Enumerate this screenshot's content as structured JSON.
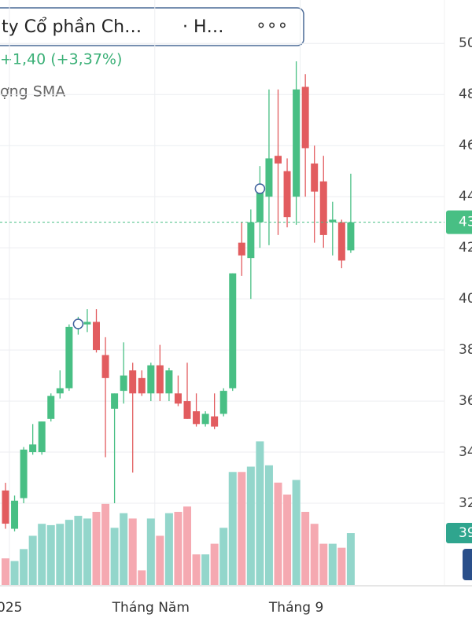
{
  "header": {
    "title": "ty Cổ phần Ch…",
    "exchange": "· H…",
    "menu": "∘∘∘",
    "change": "+1,40 (+3,37%)",
    "indicator": "ợng SMA"
  },
  "chart_data": {
    "type": "candlestick",
    "categories": [
      "025",
      null,
      null,
      null,
      null,
      null,
      null,
      null,
      null,
      null,
      null,
      null,
      null,
      null,
      null,
      null,
      "Tháng Năm",
      null,
      null,
      null,
      null,
      null,
      null,
      null,
      null,
      null,
      null,
      null,
      null,
      null,
      null,
      null,
      "Tháng 9",
      null,
      null,
      null,
      null,
      null,
      null
    ],
    "open": [
      32.5,
      31.0,
      32.2,
      34.0,
      34.0,
      35.3,
      36.3,
      36.5,
      38.9,
      39.0,
      39.1,
      37.8,
      35.7,
      36.4,
      37.2,
      36.9,
      36.3,
      37.4,
      36.3,
      36.3,
      36.0,
      35.6,
      35.1,
      35.4,
      35.5,
      36.5,
      42.2,
      41.6,
      43.0,
      44.0,
      45.6,
      45.0,
      44.0,
      48.3,
      45.3,
      44.6,
      43.0,
      43.0,
      41.9
    ],
    "high": [
      32.8,
      32.3,
      34.2,
      35.1,
      35.2,
      36.3,
      37.2,
      39.0,
      39.3,
      39.6,
      39.6,
      38.5,
      36.3,
      38.3,
      37.5,
      37.2,
      37.5,
      38.2,
      37.3,
      37.0,
      37.5,
      36.3,
      35.6,
      36.3,
      36.5,
      41.0,
      43.0,
      43.5,
      45.2,
      48.2,
      48.2,
      45.5,
      49.3,
      48.8,
      46.0,
      45.6,
      43.8,
      43.1,
      44.9
    ],
    "low": [
      31.0,
      30.9,
      32.0,
      33.9,
      33.9,
      35.2,
      36.1,
      36.4,
      38.6,
      38.7,
      37.9,
      33.8,
      32.0,
      35.9,
      33.2,
      36.2,
      36.0,
      36.0,
      36.0,
      35.8,
      35.3,
      35.0,
      35.0,
      34.9,
      35.4,
      36.4,
      40.9,
      40.0,
      42.0,
      42.1,
      42.5,
      42.8,
      42.9,
      44.0,
      42.2,
      42.0,
      41.7,
      41.2,
      41.8
    ],
    "close": [
      31.2,
      32.1,
      34.1,
      34.3,
      35.2,
      36.2,
      36.5,
      38.9,
      39.0,
      39.1,
      38.0,
      36.9,
      36.3,
      37.0,
      36.3,
      36.3,
      37.4,
      36.3,
      37.2,
      35.9,
      35.3,
      35.1,
      35.5,
      35.0,
      36.4,
      41.0,
      41.7,
      43.0,
      44.4,
      45.5,
      45.3,
      43.2,
      48.2,
      45.9,
      44.2,
      42.5,
      43.1,
      41.5,
      43
    ],
    "volume": [
      20,
      18,
      27,
      37,
      46,
      45,
      46,
      49,
      52,
      50,
      55,
      61,
      43,
      54,
      50,
      11,
      50,
      37,
      54,
      55,
      59,
      23,
      23,
      31,
      43,
      85,
      85,
      89,
      108,
      90,
      77,
      68,
      79,
      55,
      46,
      31,
      31,
      28,
      39
    ],
    "up_color": "#48bf84",
    "down_color": "#e25c5f",
    "volume_up_color": "#93d6cb",
    "volume_down_color": "#f5a9b1",
    "ylim": [
      28.8,
      51.7
    ],
    "yticks": [
      32,
      34,
      36,
      38,
      40,
      42,
      44,
      46,
      48,
      50
    ],
    "vlim": [
      0,
      110
    ],
    "grid": true
  }
}
